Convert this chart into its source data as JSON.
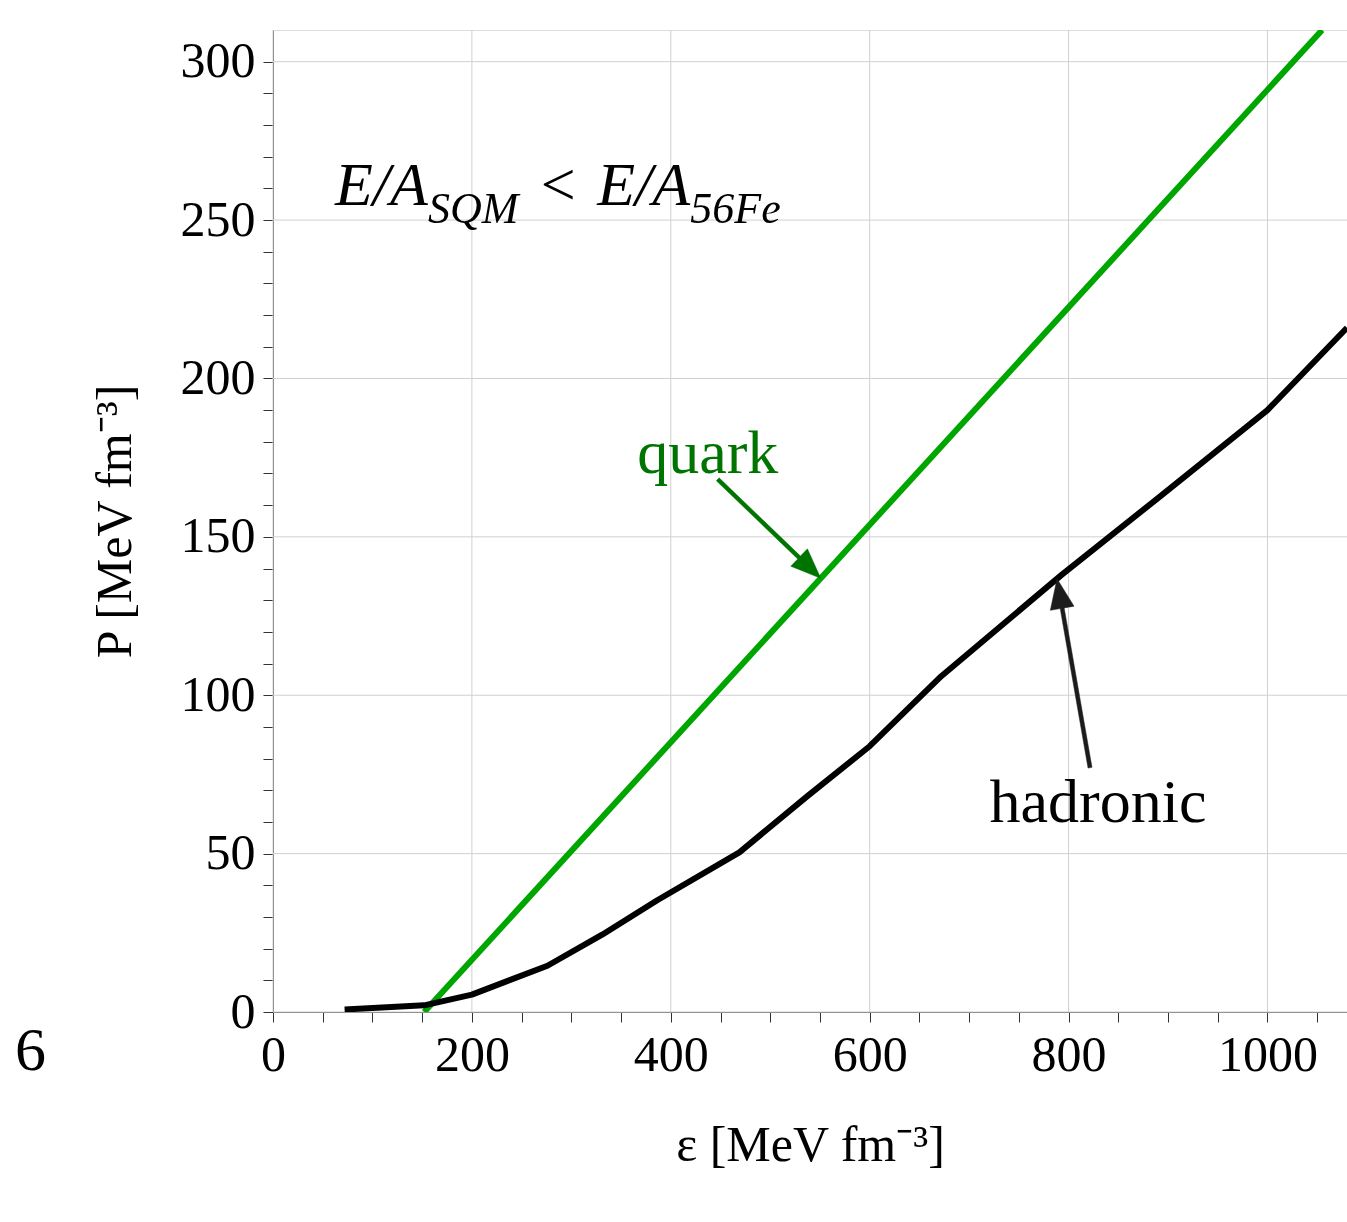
{
  "chart_data": {
    "type": "line",
    "xlabel": "ε [MeV fm⁻³]",
    "ylabel": "P [MeV fm⁻³]",
    "series": [
      {
        "name": "quark",
        "color": "#00a600",
        "x": [
          152,
          1055
        ],
        "values": [
          0,
          310
        ]
      },
      {
        "name": "hadronic",
        "color": "#000000",
        "x": [
          72,
          152,
          200,
          276,
          331,
          386,
          469,
          538,
          600,
          672,
          793,
          889,
          1000,
          1080
        ],
        "values": [
          0.8,
          2.1,
          5.5,
          14.6,
          24.4,
          35.2,
          50.4,
          68.3,
          83.9,
          106,
          138,
          162,
          190,
          216
        ]
      }
    ],
    "xlim": [
      0,
      1080
    ],
    "ylim": [
      0,
      310
    ],
    "xticks": [
      0,
      {
        "value": 50,
        "label": null
      },
      {
        "value": 100,
        "label": null
      },
      {
        "value": 150,
        "label": null
      },
      200,
      {
        "value": 250,
        "label": null
      },
      {
        "value": 300,
        "label": null
      },
      {
        "value": 350,
        "label": null
      },
      400,
      {
        "value": 450,
        "label": null
      },
      {
        "value": 500,
        "label": null
      },
      {
        "value": 550,
        "label": null
      },
      600,
      {
        "value": 650,
        "label": null
      },
      {
        "value": 700,
        "label": null
      },
      {
        "value": 750,
        "label": null
      },
      800,
      {
        "value": 850,
        "label": null
      },
      {
        "value": 900,
        "label": null
      },
      {
        "value": 950,
        "label": null
      },
      1000,
      {
        "value": 1050,
        "label": null
      }
    ],
    "yticks": [
      0,
      {
        "value": 10,
        "label": null
      },
      {
        "value": 20,
        "label": null
      },
      {
        "value": 30,
        "label": null
      },
      {
        "value": 40,
        "label": null
      },
      50,
      {
        "value": 60,
        "label": null
      },
      {
        "value": 70,
        "label": null
      },
      {
        "value": 80,
        "label": null
      },
      {
        "value": 90,
        "label": null
      },
      100,
      {
        "value": 110,
        "label": null
      },
      {
        "value": 120,
        "label": null
      },
      {
        "value": 130,
        "label": null
      },
      {
        "value": 140,
        "label": null
      },
      150,
      {
        "value": 160,
        "label": null
      },
      {
        "value": 170,
        "label": null
      },
      {
        "value": 180,
        "label": null
      },
      {
        "value": 190,
        "label": null
      },
      200,
      {
        "value": 210,
        "label": null
      },
      {
        "value": 220,
        "label": null
      },
      {
        "value": 230,
        "label": null
      },
      {
        "value": 240,
        "label": null
      },
      250,
      {
        "value": 260,
        "label": null
      },
      {
        "value": 270,
        "label": null
      },
      {
        "value": 280,
        "label": null
      },
      {
        "value": 290,
        "label": null
      },
      300
    ],
    "grid": true,
    "marker": "none",
    "line_style": "solid",
    "annotations": [
      "E/A$_{SQM}$ < E/A$_{56Fe}$",
      "6"
    ]
  }
}
